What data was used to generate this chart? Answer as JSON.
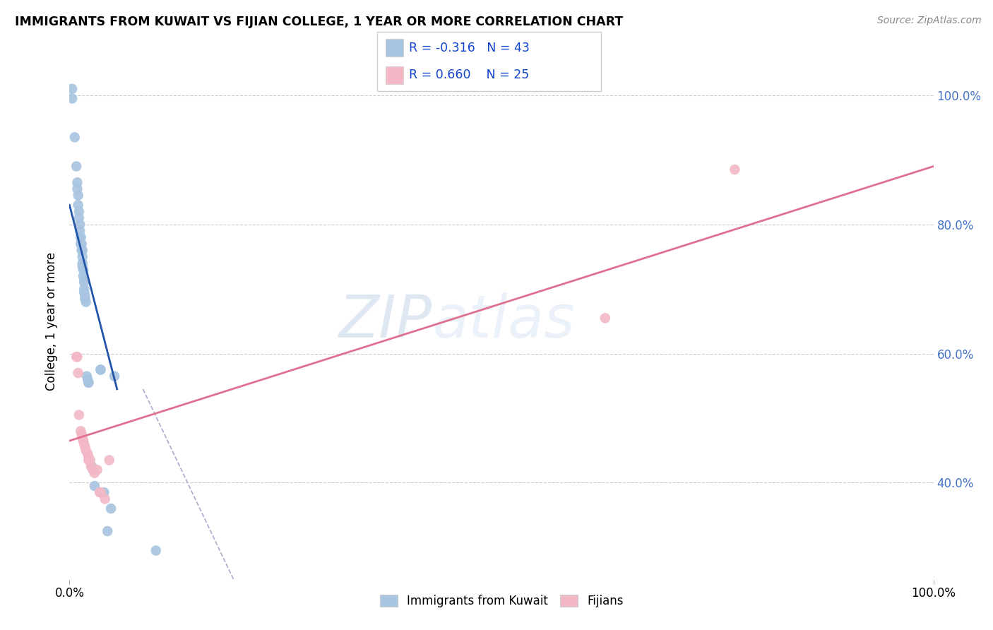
{
  "title": "IMMIGRANTS FROM KUWAIT VS FIJIAN COLLEGE, 1 YEAR OR MORE CORRELATION CHART",
  "source": "Source: ZipAtlas.com",
  "ylabel": "College, 1 year or more",
  "legend_label1": "Immigrants from Kuwait",
  "legend_label2": "Fijians",
  "r1": "-0.316",
  "n1": "43",
  "r2": "0.660",
  "n2": "25",
  "watermark_zip": "ZIP",
  "watermark_atlas": "atlas",
  "xlim": [
    0.0,
    1.0
  ],
  "ylim": [
    0.25,
    1.05
  ],
  "yticks": [
    0.4,
    0.6,
    0.8,
    1.0
  ],
  "ytick_labels": [
    "40.0%",
    "60.0%",
    "80.0%",
    "100.0%"
  ],
  "xticks": [
    0.0,
    1.0
  ],
  "xtick_labels": [
    "0.0%",
    "100.0%"
  ],
  "color_blue": "#a8c4e0",
  "color_pink": "#f2b8c6",
  "line_blue": "#2255aa",
  "line_pink": "#e07090",
  "line_dashed": "#aaaacc",
  "blue_scatter_x": [
    0.003,
    0.003,
    0.006,
    0.008,
    0.009,
    0.009,
    0.01,
    0.01,
    0.011,
    0.011,
    0.012,
    0.012,
    0.013,
    0.013,
    0.013,
    0.014,
    0.014,
    0.015,
    0.015,
    0.015,
    0.015,
    0.016,
    0.016,
    0.017,
    0.017,
    0.017,
    0.017,
    0.018,
    0.018,
    0.019,
    0.02,
    0.021,
    0.022,
    0.022,
    0.026,
    0.029,
    0.036,
    0.036,
    0.04,
    0.044,
    0.048,
    0.052,
    0.1
  ],
  "blue_scatter_y": [
    1.01,
    0.995,
    0.935,
    0.89,
    0.865,
    0.855,
    0.845,
    0.83,
    0.82,
    0.81,
    0.8,
    0.79,
    0.78,
    0.78,
    0.77,
    0.77,
    0.76,
    0.76,
    0.75,
    0.74,
    0.735,
    0.73,
    0.72,
    0.715,
    0.71,
    0.7,
    0.695,
    0.69,
    0.685,
    0.68,
    0.565,
    0.56,
    0.555,
    0.555,
    0.425,
    0.395,
    0.575,
    0.575,
    0.385,
    0.325,
    0.36,
    0.565,
    0.295
  ],
  "pink_scatter_x": [
    0.008,
    0.009,
    0.01,
    0.011,
    0.013,
    0.014,
    0.015,
    0.016,
    0.017,
    0.018,
    0.019,
    0.021,
    0.022,
    0.022,
    0.024,
    0.025,
    0.027,
    0.029,
    0.032,
    0.035,
    0.036,
    0.041,
    0.046,
    0.62,
    0.77
  ],
  "pink_scatter_y": [
    0.595,
    0.595,
    0.57,
    0.505,
    0.48,
    0.475,
    0.47,
    0.465,
    0.46,
    0.455,
    0.45,
    0.445,
    0.44,
    0.435,
    0.435,
    0.425,
    0.42,
    0.415,
    0.42,
    0.385,
    0.385,
    0.375,
    0.435,
    0.655,
    0.885
  ],
  "blue_line_x": [
    0.0,
    0.055
  ],
  "blue_line_y": [
    0.83,
    0.545
  ],
  "pink_line_x": [
    0.0,
    1.0
  ],
  "pink_line_y": [
    0.465,
    0.89
  ],
  "dashed_line_x": [
    0.085,
    0.19
  ],
  "dashed_line_y": [
    0.545,
    0.25
  ]
}
